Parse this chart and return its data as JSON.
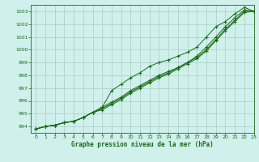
{
  "x": [
    0,
    1,
    2,
    3,
    4,
    5,
    6,
    7,
    8,
    9,
    10,
    11,
    12,
    13,
    14,
    15,
    16,
    17,
    18,
    19,
    20,
    21,
    22,
    23
  ],
  "line1": [
    993.8,
    994.0,
    994.1,
    994.3,
    994.4,
    994.7,
    995.1,
    995.5,
    996.8,
    997.3,
    997.8,
    998.2,
    998.7,
    999.0,
    999.2,
    999.5,
    999.8,
    1000.2,
    1001.0,
    1001.8,
    1002.2,
    1002.8,
    1003.3,
    1003.0
  ],
  "line2": [
    993.8,
    994.0,
    994.1,
    994.3,
    994.4,
    994.7,
    995.1,
    995.5,
    995.9,
    996.3,
    996.8,
    997.2,
    997.6,
    998.0,
    998.3,
    998.6,
    999.0,
    999.5,
    1000.2,
    1001.0,
    1001.8,
    1002.5,
    1003.1,
    1003.0
  ],
  "line3": [
    993.8,
    994.0,
    994.1,
    994.3,
    994.4,
    994.7,
    995.1,
    995.4,
    995.8,
    996.2,
    996.7,
    997.1,
    997.5,
    997.9,
    998.2,
    998.6,
    999.0,
    999.4,
    1000.0,
    1000.8,
    1001.6,
    1002.3,
    1003.0,
    1003.0
  ],
  "line4": [
    993.8,
    994.0,
    994.1,
    994.3,
    994.4,
    994.7,
    995.1,
    995.3,
    995.7,
    996.1,
    996.6,
    997.0,
    997.4,
    997.8,
    998.1,
    998.5,
    998.9,
    999.3,
    999.9,
    1000.7,
    1001.5,
    1002.2,
    1002.9,
    1003.0
  ],
  "line_color": "#1a6b1a",
  "bg_color": "#cff0eb",
  "grid_color": "#aaccc6",
  "xlabel": "Graphe pression niveau de la mer (hPa)",
  "ylim": [
    993.5,
    1003.5
  ],
  "xlim": [
    -0.5,
    23
  ],
  "yticks": [
    994,
    995,
    996,
    997,
    998,
    999,
    1000,
    1001,
    1002,
    1003
  ],
  "xticks": [
    0,
    1,
    2,
    3,
    4,
    5,
    6,
    7,
    8,
    9,
    10,
    11,
    12,
    13,
    14,
    15,
    16,
    17,
    18,
    19,
    20,
    21,
    22,
    23
  ]
}
